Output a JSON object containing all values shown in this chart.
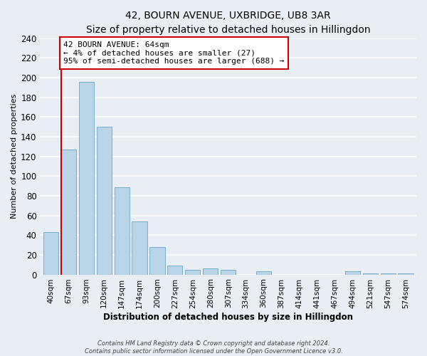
{
  "title": "42, BOURN AVENUE, UXBRIDGE, UB8 3AR",
  "subtitle": "Size of property relative to detached houses in Hillingdon",
  "xlabel": "Distribution of detached houses by size in Hillingdon",
  "ylabel": "Number of detached properties",
  "footnote1": "Contains HM Land Registry data © Crown copyright and database right 2024.",
  "footnote2": "Contains public sector information licensed under the Open Government Licence v3.0.",
  "bar_labels": [
    "40sqm",
    "67sqm",
    "93sqm",
    "120sqm",
    "147sqm",
    "174sqm",
    "200sqm",
    "227sqm",
    "254sqm",
    "280sqm",
    "307sqm",
    "334sqm",
    "360sqm",
    "387sqm",
    "414sqm",
    "441sqm",
    "467sqm",
    "494sqm",
    "521sqm",
    "547sqm",
    "574sqm"
  ],
  "bar_values": [
    43,
    127,
    196,
    150,
    89,
    54,
    28,
    9,
    5,
    6,
    5,
    0,
    3,
    0,
    0,
    0,
    0,
    3,
    1,
    1,
    1
  ],
  "bar_color": "#b8d4e8",
  "bar_edge_color": "#7aaec8",
  "ylim": [
    0,
    240
  ],
  "yticks": [
    0,
    20,
    40,
    60,
    80,
    100,
    120,
    140,
    160,
    180,
    200,
    220,
    240
  ],
  "marker_line_color": "#cc0000",
  "annotation_title": "42 BOURN AVENUE: 64sqm",
  "annotation_line1": "← 4% of detached houses are smaller (27)",
  "annotation_line2": "95% of semi-detached houses are larger (688) →",
  "annotation_box_color": "#ffffff",
  "annotation_box_edge": "#cc0000",
  "bg_color": "#e8eef4",
  "grid_color": "#ffffff",
  "title_fontsize": 10,
  "subtitle_fontsize": 9
}
